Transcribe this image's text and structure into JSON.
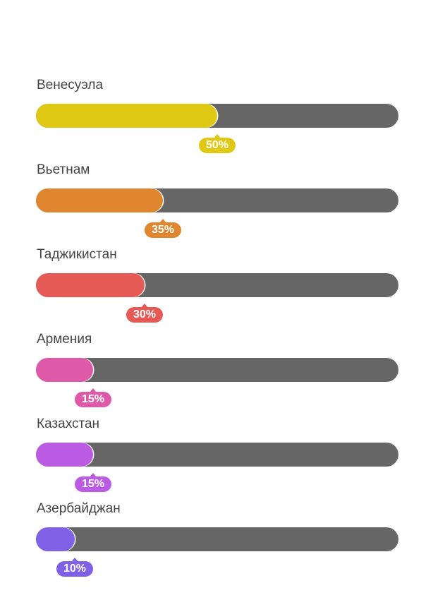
{
  "chart_data": {
    "type": "bar",
    "orientation": "horizontal",
    "xlim": [
      0,
      100
    ],
    "value_suffix": "%",
    "grid": false,
    "categories": [
      "Венесуэла",
      "Вьетнам",
      "Таджикистан",
      "Армения",
      "Казахстан",
      "Азербайджан"
    ],
    "values": [
      50,
      35,
      30,
      15,
      15,
      10
    ],
    "value_labels": [
      "50%",
      "35%",
      "30%",
      "15%",
      "15%",
      "10%"
    ],
    "colors": [
      "#e0c914",
      "#e0862f",
      "#e55a55",
      "#de5aa8",
      "#bb5ae3",
      "#7f60e6"
    ],
    "track_color": "#666666"
  }
}
